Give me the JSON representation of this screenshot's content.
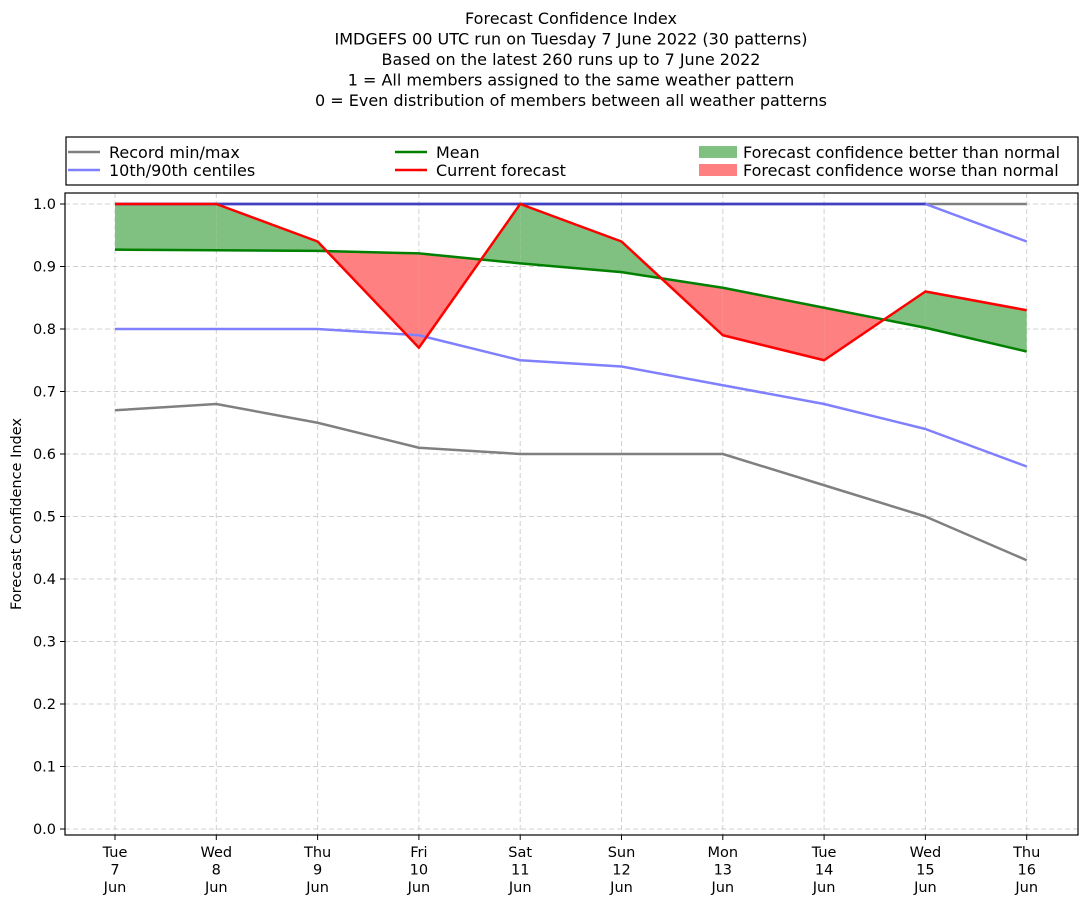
{
  "chart_data": {
    "type": "line",
    "title_lines": [
      "Forecast Confidence Index",
      "IMDGEFS 00 UTC run on Tuesday 7 June 2022 (30 patterns)",
      "Based on the latest 260 runs up to 7 June 2022",
      "1 = All members assigned to the same weather pattern",
      "0 = Even distribution of members between all weather patterns"
    ],
    "ylabel": "Forecast Confidence Index",
    "xlabel": "",
    "ylim": [
      0,
      1.0
    ],
    "yticks": [
      "0.0",
      "0.1",
      "0.2",
      "0.3",
      "0.4",
      "0.5",
      "0.6",
      "0.7",
      "0.8",
      "0.9",
      "1.0"
    ],
    "grid": true,
    "legend_position": "top",
    "categories": [
      [
        "Tue",
        "7",
        "Jun"
      ],
      [
        "Wed",
        "8",
        "Jun"
      ],
      [
        "Thu",
        "9",
        "Jun"
      ],
      [
        "Fri",
        "10",
        "Jun"
      ],
      [
        "Sat",
        "11",
        "Jun"
      ],
      [
        "Sun",
        "12",
        "Jun"
      ],
      [
        "Mon",
        "13",
        "Jun"
      ],
      [
        "Tue",
        "14",
        "Jun"
      ],
      [
        "Wed",
        "15",
        "Jun"
      ],
      [
        "Thu",
        "16",
        "Jun"
      ]
    ],
    "series": {
      "record_min": [
        0.67,
        0.68,
        0.65,
        0.61,
        0.6,
        0.6,
        0.6,
        0.55,
        0.5,
        0.43
      ],
      "record_max": [
        1.0,
        1.0,
        1.0,
        1.0,
        1.0,
        1.0,
        1.0,
        1.0,
        1.0,
        1.0
      ],
      "p10": [
        0.8,
        0.8,
        0.8,
        0.79,
        0.75,
        0.74,
        0.71,
        0.68,
        0.64,
        0.58
      ],
      "p90": [
        1.0,
        1.0,
        1.0,
        1.0,
        1.0,
        1.0,
        1.0,
        1.0,
        1.0,
        0.94
      ],
      "mean": [
        0.927,
        0.926,
        0.925,
        0.921,
        0.905,
        0.891,
        0.866,
        0.834,
        0.802,
        0.764
      ],
      "current": [
        1.0,
        1.0,
        0.94,
        0.77,
        1.0,
        0.94,
        0.79,
        0.75,
        0.86,
        0.83
      ]
    },
    "legend": [
      {
        "key": "record",
        "label": "Record min/max",
        "kind": "line",
        "color": "#808080"
      },
      {
        "key": "mean",
        "label": "Mean",
        "kind": "line",
        "color": "#008000"
      },
      {
        "key": "better",
        "label": "Forecast confidence better than normal",
        "kind": "patch",
        "color": "#80c080"
      },
      {
        "key": "centiles",
        "label": "10th/90th centiles",
        "kind": "line",
        "color": "#8080ff"
      },
      {
        "key": "current",
        "label": "Current forecast",
        "kind": "line",
        "color": "#ff0000"
      },
      {
        "key": "worse",
        "label": "Forecast confidence worse than normal",
        "kind": "patch",
        "color": "#ff8080"
      }
    ],
    "colors": {
      "record": "#808080",
      "centiles": "#8080ff",
      "centiles_overlap": "#4040c0",
      "mean": "#008000",
      "current": "#ff0000",
      "better": "#80c080",
      "worse": "#ff8080",
      "grid": "#d0d0d0"
    }
  }
}
